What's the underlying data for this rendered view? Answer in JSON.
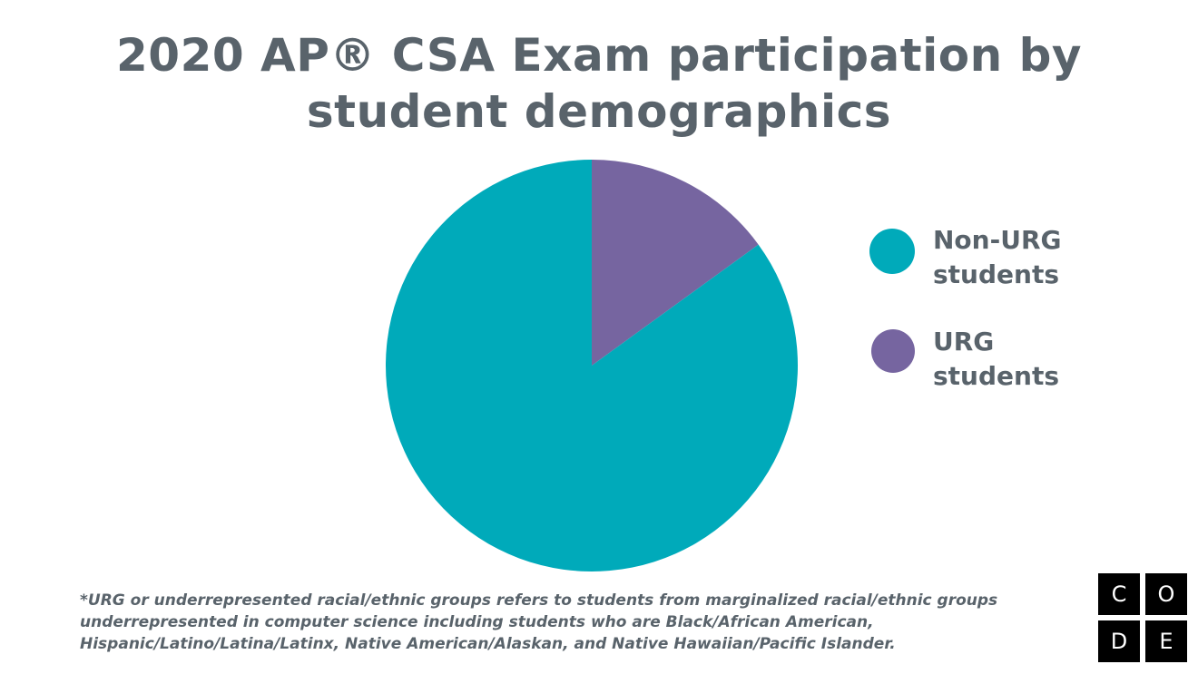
{
  "chart_data": {
    "type": "pie",
    "title_line1": "2020 AP® CSA Exam participation by",
    "title_line2": "student demographics",
    "slices": [
      {
        "label": "Non-URG students",
        "value": 85,
        "color": "#00aaba"
      },
      {
        "label": "URG students",
        "value": 15,
        "color": "#7665a0"
      }
    ],
    "legend_placement": "right"
  },
  "legend": {
    "items": [
      {
        "line1": "Non-URG",
        "line2": "students",
        "color": "#00aaba"
      },
      {
        "line1": "URG",
        "line2": "students",
        "color": "#7665a0"
      }
    ]
  },
  "footnote": {
    "line1": "*URG or underrepresented racial/ethnic groups refers to students from marginalized racial/ethnic groups",
    "line2": "underrepresented in computer science including students who are Black/African American,",
    "line3": "Hispanic/Latino/Latina/Latinx, Native American/Alaskan, and Native Hawaiian/Pacific Islander."
  },
  "logo": {
    "letters": [
      "C",
      "O",
      "D",
      "E"
    ]
  }
}
